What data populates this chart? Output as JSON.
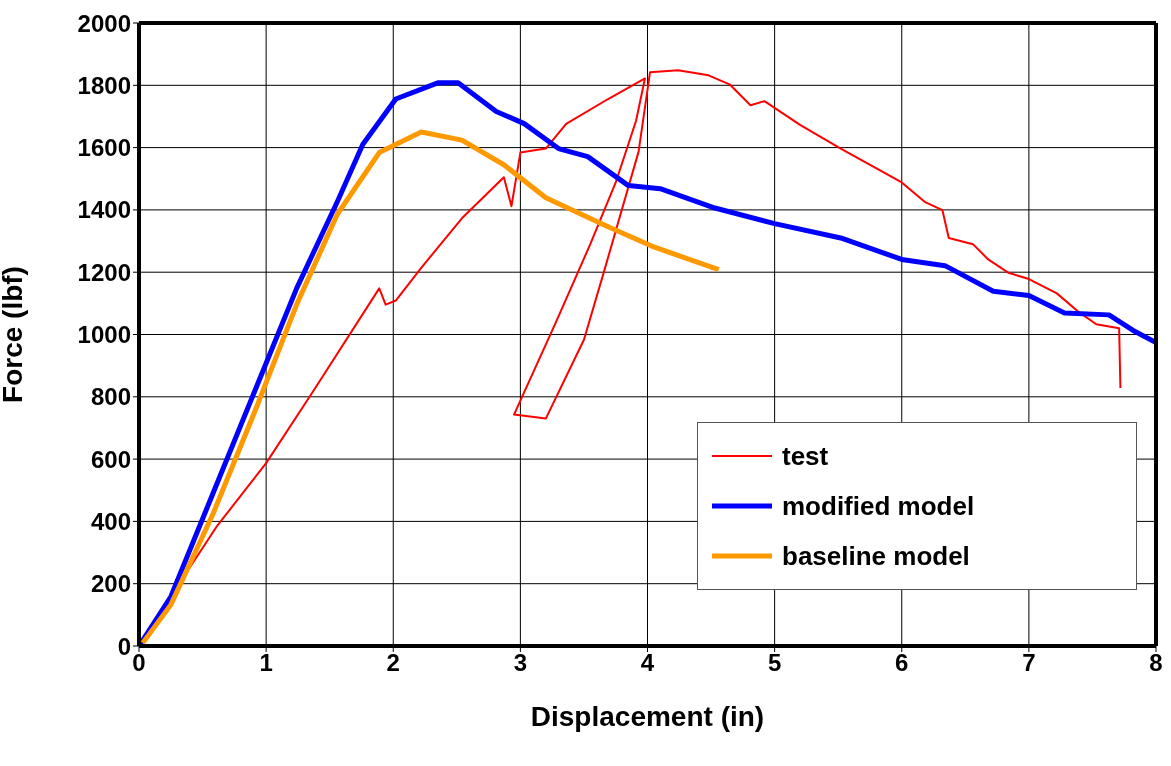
{
  "chart_data": {
    "type": "line",
    "xlabel": "Displacement (in)",
    "ylabel": "Force (lbf)",
    "xlim": [
      0,
      8
    ],
    "xticks": [
      0,
      1,
      2,
      3,
      4,
      5,
      6,
      7,
      8
    ],
    "ylim": [
      0,
      2000
    ],
    "yticks": [
      0,
      200,
      400,
      600,
      800,
      1000,
      1200,
      1400,
      1600,
      1800,
      2000
    ],
    "grid": true,
    "legend": "bottom right",
    "marker": "none",
    "line_style": "solid",
    "series": [
      {
        "name": "test",
        "color": "#ff0000",
        "x": [
          0,
          0.3,
          0.61,
          1.0,
          1.37,
          1.89,
          1.94,
          2.02,
          2.22,
          2.54,
          2.87,
          2.93,
          3.0,
          3.2,
          3.36,
          3.69,
          3.98,
          3.91,
          3.75,
          3.55,
          3.28,
          2.95,
          3.2,
          3.5,
          3.66,
          3.93,
          4.02,
          4.24,
          4.48,
          4.65,
          4.81,
          4.92,
          5.2,
          5.52,
          6.0,
          6.18,
          6.32,
          6.37,
          6.56,
          6.68,
          6.84,
          7.0,
          7.22,
          7.38,
          7.53,
          7.71,
          7.72
        ],
        "values": [
          0,
          190,
          383,
          587,
          818,
          1148,
          1096,
          1109,
          1214,
          1373,
          1505,
          1412,
          1584,
          1597,
          1676,
          1756,
          1822,
          1686,
          1488,
          1290,
          1040,
          743,
          730,
          983,
          1205,
          1587,
          1842,
          1848,
          1832,
          1802,
          1736,
          1749,
          1673,
          1597,
          1488,
          1426,
          1399,
          1310,
          1290,
          1241,
          1198,
          1178,
          1132,
          1076,
          1033,
          1020,
          828
        ]
      },
      {
        "name": "modified model",
        "color": "#0000ff",
        "x": [
          0,
          0.25,
          0.58,
          0.91,
          1.24,
          1.56,
          1.76,
          2.02,
          2.35,
          2.51,
          2.81,
          3.03,
          3.3,
          3.53,
          3.85,
          4.1,
          4.53,
          5.0,
          5.52,
          6.0,
          6.34,
          6.72,
          7.0,
          7.28,
          7.63,
          7.82,
          8.0
        ],
        "values": [
          0,
          158,
          488,
          818,
          1148,
          1426,
          1610,
          1756,
          1808,
          1808,
          1716,
          1677,
          1597,
          1571,
          1478,
          1468,
          1406,
          1356,
          1310,
          1241,
          1221,
          1139,
          1125,
          1069,
          1063,
          1013,
          974
        ]
      },
      {
        "name": "baseline model",
        "color": "#ff9900",
        "x": [
          0.03,
          0.25,
          0.58,
          0.91,
          1.24,
          1.56,
          1.89,
          2.22,
          2.54,
          2.87,
          3.2,
          3.69,
          4.05,
          4.56
        ],
        "values": [
          10,
          132,
          422,
          752,
          1096,
          1386,
          1584,
          1650,
          1624,
          1545,
          1439,
          1346,
          1281,
          1208
        ]
      }
    ]
  }
}
